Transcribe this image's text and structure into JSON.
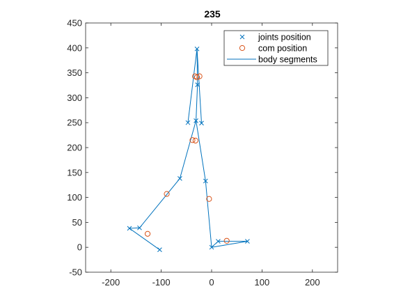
{
  "chart_data": {
    "type": "scatter",
    "title": "235",
    "xlabel": "",
    "ylabel": "",
    "xlim": [
      -250,
      250
    ],
    "ylim": [
      -50,
      450
    ],
    "xticks": [
      -200,
      -100,
      0,
      100,
      200
    ],
    "yticks": [
      -50,
      0,
      50,
      100,
      150,
      200,
      250,
      300,
      350,
      400,
      450
    ],
    "grid": false,
    "legend_position": "top-right",
    "colors": {
      "joints": "#0072BD",
      "com": "#D95319",
      "segments": "#0072BD",
      "axis": "#262626"
    },
    "series": [
      {
        "name": "joints position",
        "marker": "x",
        "points": [
          [
            -29,
            398
          ],
          [
            -28,
            326
          ],
          [
            -47,
            250
          ],
          [
            -20,
            249
          ],
          [
            -31,
            254
          ],
          [
            -63,
            138
          ],
          [
            -12,
            133
          ],
          [
            -163,
            38
          ],
          [
            -143,
            39
          ],
          [
            -103,
            -5
          ],
          [
            0,
            0
          ],
          [
            13,
            12
          ],
          [
            71,
            12
          ]
        ]
      },
      {
        "name": "com position",
        "marker": "o",
        "points": [
          [
            -33,
            343
          ],
          [
            -24,
            343
          ],
          [
            -29,
            341
          ],
          [
            -38,
            215
          ],
          [
            -32,
            214
          ],
          [
            -89,
            107
          ],
          [
            -5,
            97
          ],
          [
            -127,
            27
          ],
          [
            30,
            13
          ]
        ]
      },
      {
        "name": "body segments",
        "marker": "line",
        "paths": [
          [
            [
              -47,
              250
            ],
            [
              -29,
              398
            ],
            [
              -20,
              249
            ]
          ],
          [
            [
              -29,
              398
            ],
            [
              -28,
              326
            ],
            [
              -31,
              254
            ]
          ],
          [
            [
              -31,
              254
            ],
            [
              -63,
              138
            ],
            [
              -143,
              39
            ],
            [
              -163,
              38
            ],
            [
              -103,
              -5
            ]
          ],
          [
            [
              -31,
              254
            ],
            [
              -12,
              133
            ],
            [
              0,
              0
            ],
            [
              13,
              12
            ],
            [
              71,
              12
            ],
            [
              0,
              0
            ]
          ]
        ]
      }
    ]
  }
}
